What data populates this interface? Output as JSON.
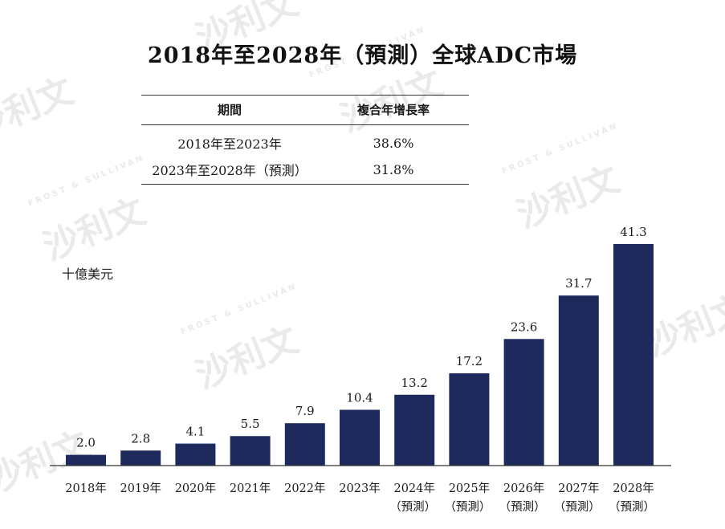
{
  "title": "2018年至2028年（預測）全球ADC市場",
  "table": {
    "headers": [
      "期間",
      "複合年增長率"
    ],
    "rows": [
      {
        "period": "2018年至2023年",
        "cagr": "38.6%"
      },
      {
        "period": "2023年至2028年（預測）",
        "cagr": "31.8%"
      }
    ]
  },
  "chart_data": {
    "type": "bar",
    "title": "2018年至2028年（預測）全球ADC市場",
    "ylabel": "十億美元",
    "xlabel": "",
    "categories": [
      "2018年",
      "2019年",
      "2020年",
      "2021年",
      "2022年",
      "2023年",
      "2024年",
      "2025年",
      "2026年",
      "2027年",
      "2028年"
    ],
    "category_notes": [
      "",
      "",
      "",
      "",
      "",
      "",
      "（預測）",
      "（預測）",
      "（預測）",
      "（預測）",
      "（預測）"
    ],
    "values": [
      2.0,
      2.8,
      4.1,
      5.5,
      7.9,
      10.4,
      13.2,
      17.2,
      23.6,
      31.7,
      41.3
    ],
    "value_labels": [
      "2.0",
      "2.8",
      "4.1",
      "5.5",
      "7.9",
      "10.4",
      "13.2",
      "17.2",
      "23.6",
      "31.7",
      "41.3"
    ],
    "ylim": [
      0,
      41.3
    ],
    "grid": false,
    "bar_color": "#1f2a5c"
  },
  "watermark": {
    "brand": "沙利文",
    "company": "FROST & SULLIVAN"
  }
}
